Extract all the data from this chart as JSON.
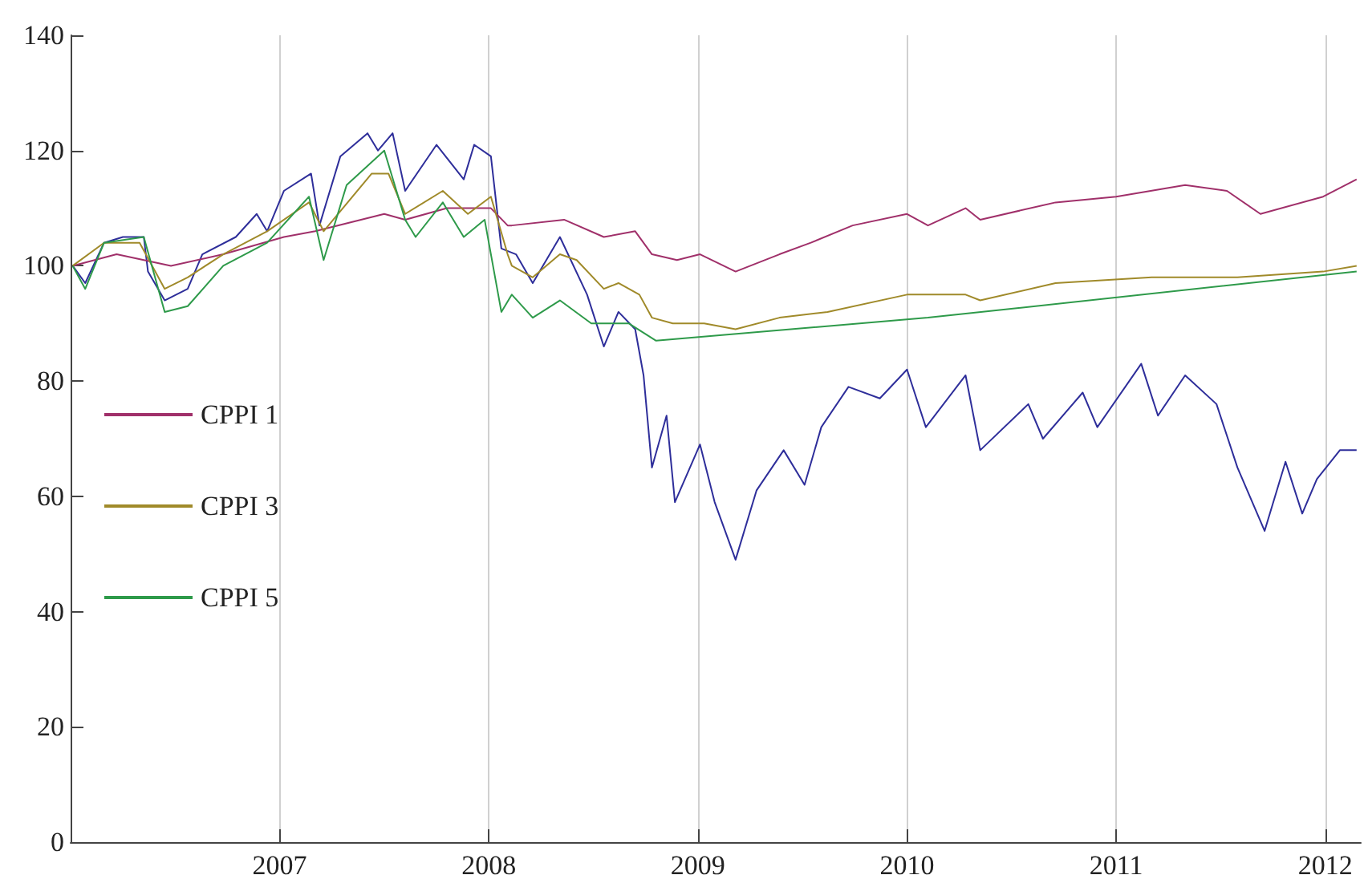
{
  "chart_data": {
    "type": "line",
    "xlim": [
      2006,
      2012.17
    ],
    "xticks": [
      2007,
      2008,
      2009,
      2010,
      2011,
      2012
    ],
    "ylim": [
      0,
      140
    ],
    "yticks": [
      0,
      20,
      40,
      60,
      80,
      100,
      120,
      140
    ],
    "grid": "x",
    "legend": "left",
    "marker": "none",
    "line_style": "solid",
    "series": [
      {
        "color": "#2e2e9a",
        "x": [
          2006.01,
          2006.07,
          2006.16,
          2006.25,
          2006.35,
          2006.37,
          2006.45,
          2006.56,
          2006.63,
          2006.79,
          2006.89,
          2006.94,
          2007.02,
          2007.15,
          2007.19,
          2007.29,
          2007.42,
          2007.47,
          2007.54,
          2007.6,
          2007.75,
          2007.88,
          2007.93,
          2008.01,
          2008.06,
          2008.13,
          2008.21,
          2008.34,
          2008.47,
          2008.55,
          2008.62,
          2008.7,
          2008.74,
          2008.78,
          2008.85,
          2008.89,
          2009.01,
          2009.08,
          2009.18,
          2009.28,
          2009.41,
          2009.51,
          2009.59,
          2009.72,
          2009.87,
          2010,
          2010.09,
          2010.28,
          2010.35,
          2010.58,
          2010.65,
          2010.84,
          2010.91,
          2011.12,
          2011.2,
          2011.33,
          2011.48,
          2011.58,
          2011.71,
          2011.81,
          2011.89,
          2011.96,
          2012.07,
          2012.15
        ],
        "values": [
          100,
          97,
          104,
          105,
          105,
          99,
          94,
          96,
          102,
          105,
          109,
          106,
          113,
          116,
          107,
          119,
          123,
          120,
          123,
          113,
          121,
          115,
          121,
          119,
          103,
          102,
          97,
          105,
          95,
          86,
          92,
          89,
          81,
          65,
          74,
          59,
          69,
          59,
          49,
          61,
          68,
          62,
          72,
          79,
          77,
          82,
          72,
          81,
          68,
          76,
          70,
          78,
          72,
          83,
          74,
          81,
          76,
          65,
          54,
          66,
          57,
          63,
          68,
          68
        ]
      },
      {
        "name": "CPPI 1",
        "color": "#a0306a",
        "x": [
          2006.01,
          2006.22,
          2006.48,
          2006.73,
          2007.02,
          2007.17,
          2007.5,
          2007.6,
          2007.8,
          2008.01,
          2008.09,
          2008.11,
          2008.36,
          2008.55,
          2008.7,
          2008.78,
          2008.9,
          2009.01,
          2009.18,
          2009.39,
          2009.54,
          2009.74,
          2010,
          2010.1,
          2010.28,
          2010.35,
          2010.71,
          2011,
          2011.33,
          2011.53,
          2011.69,
          2011.99,
          2012.15
        ],
        "values": [
          100,
          102,
          100,
          102,
          105,
          106,
          109,
          108,
          110,
          110,
          107,
          107,
          108,
          105,
          106,
          102,
          101,
          102,
          99,
          102,
          104,
          107,
          109,
          107,
          110,
          108,
          111,
          112,
          114,
          113,
          109,
          112,
          115
        ]
      },
      {
        "name": "CPPI 3",
        "color": "#a08a2a",
        "x": [
          2006.01,
          2006.16,
          2006.33,
          2006.45,
          2006.56,
          2006.73,
          2006.94,
          2007.14,
          2007.21,
          2007.44,
          2007.52,
          2007.6,
          2007.78,
          2007.9,
          2008.01,
          2008.09,
          2008.11,
          2008.21,
          2008.34,
          2008.42,
          2008.55,
          2008.62,
          2008.72,
          2008.78,
          2008.88,
          2009.03,
          2009.18,
          2009.39,
          2009.62,
          2010,
          2010.28,
          2010.35,
          2010.71,
          2011.17,
          2011.58,
          2011.99,
          2012.15
        ],
        "values": [
          100,
          104,
          104,
          96,
          98,
          102,
          106,
          111,
          106,
          116,
          116,
          109,
          113,
          109,
          112,
          102,
          100,
          98,
          102,
          101,
          96,
          97,
          95,
          91,
          90,
          90,
          89,
          91,
          92,
          95,
          95,
          94,
          97,
          98,
          98,
          99,
          100
        ]
      },
      {
        "name": "CPPI 5",
        "color": "#2e9a4a",
        "x": [
          2006.01,
          2006.07,
          2006.16,
          2006.35,
          2006.45,
          2006.56,
          2006.73,
          2006.94,
          2007.14,
          2007.21,
          2007.32,
          2007.5,
          2007.6,
          2007.65,
          2007.78,
          2007.88,
          2007.98,
          2008.06,
          2008.11,
          2008.21,
          2008.34,
          2008.49,
          2008.67,
          2008.8,
          2010.1,
          2012.15
        ],
        "values": [
          100,
          96,
          104,
          105,
          92,
          93,
          100,
          104,
          112,
          101,
          114,
          120,
          108,
          105,
          111,
          105,
          108,
          92,
          95,
          91,
          94,
          90,
          90,
          87,
          91,
          99
        ]
      }
    ]
  }
}
